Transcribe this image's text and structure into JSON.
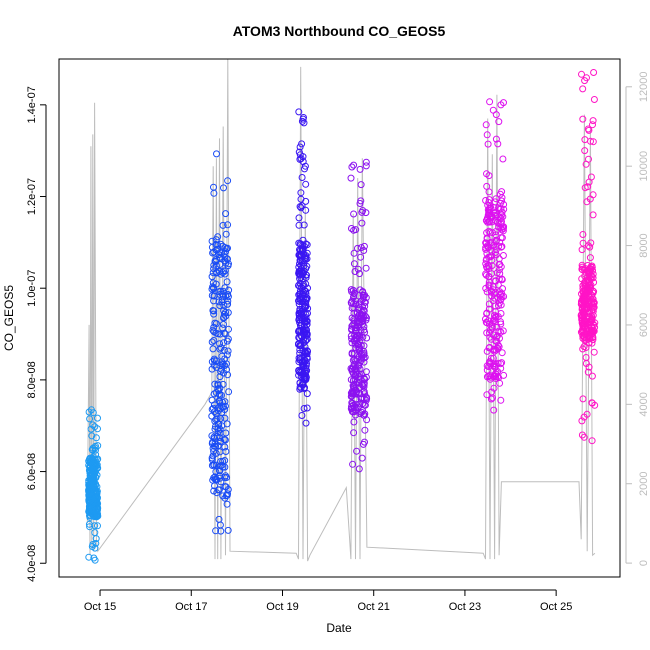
{
  "chart_data": {
    "type": "scatter",
    "title": "ATOM3 Northbound CO_GEOS5",
    "xlabel": "Date",
    "ylabel": "CO_GEOS5",
    "x_tick_labels": [
      "Oct 15",
      "Oct 17",
      "Oct 19",
      "Oct 21",
      "Oct 23",
      "Oct 25"
    ],
    "x_ticks_day": [
      15,
      17,
      19,
      21,
      23,
      25
    ],
    "xlim_day": [
      14.1,
      26.4
    ],
    "y_tick_values": [
      4e-08,
      6e-08,
      8e-08,
      1e-07,
      1.2e-07,
      1.4e-07
    ],
    "y_tick_labels": [
      "4.0e-08",
      "6.0e-08",
      "8.0e-08",
      "1.0e-07",
      "1.2e-07",
      "1.4e-07"
    ],
    "ylim": [
      3.7e-08,
      1.5e-07
    ],
    "y2_tick_values": [
      0,
      2000,
      4000,
      6000,
      8000,
      10000,
      12000
    ],
    "y2_tick_labels": [
      "0",
      "2000",
      "4000",
      "6000",
      "8000",
      "10000",
      "12000"
    ],
    "y2lim": [
      -350,
      12700
    ],
    "colors": {
      "series1": "#1e9af2",
      "series2": "#1a4cf5",
      "series3": "#3a16f2",
      "series4": "#8c12f0",
      "series5": "#dd11f0",
      "series6": "#ff14c6",
      "altitude": "#bdbdbd"
    },
    "series": [
      {
        "color": "#1e9af2",
        "day_start": 14.75,
        "day_end": 14.95,
        "ymin": 4.05e-08,
        "ymax": 7.4e-08,
        "core_low": 5e-08,
        "core_high": 6.3e-08
      },
      {
        "color": "#1a4cf5",
        "day_start": 17.45,
        "day_end": 17.82,
        "ymin": 4.7e-08,
        "ymax": 1.33e-07,
        "core_low": 5.5e-08,
        "core_high": 1.1e-07
      },
      {
        "color": "#3a16f2",
        "day_start": 19.35,
        "day_end": 19.55,
        "ymin": 6.8e-08,
        "ymax": 1.39e-07,
        "core_low": 7.8e-08,
        "core_high": 1.1e-07
      },
      {
        "color": "#8c12f0",
        "day_start": 20.5,
        "day_end": 20.85,
        "ymin": 6e-08,
        "ymax": 1.28e-07,
        "core_low": 7.2e-08,
        "core_high": 1e-07
      },
      {
        "color": "#dd11f0",
        "day_start": 23.45,
        "day_end": 23.85,
        "ymin": 7.3e-08,
        "ymax": 1.41e-07,
        "core_low": 8e-08,
        "core_high": 1.2e-07
      },
      {
        "color": "#ff14c6",
        "day_start": 25.55,
        "day_end": 25.85,
        "ymin": 6.4e-08,
        "ymax": 1.48e-07,
        "core_low": 8.8e-08,
        "core_high": 1.05e-07
      }
    ],
    "altitude_path": [
      [
        14.72,
        1000
      ],
      [
        14.76,
        6000
      ],
      [
        14.78,
        200
      ],
      [
        14.8,
        10500
      ],
      [
        14.82,
        400
      ],
      [
        14.84,
        10800
      ],
      [
        14.86,
        300
      ],
      [
        14.88,
        11600
      ],
      [
        14.92,
        600
      ],
      [
        14.95,
        300
      ],
      [
        17.3,
        4000
      ],
      [
        17.45,
        4300
      ],
      [
        17.48,
        10000
      ],
      [
        17.52,
        100
      ],
      [
        17.55,
        10200
      ],
      [
        17.58,
        100
      ],
      [
        17.62,
        10700
      ],
      [
        17.65,
        100
      ],
      [
        17.7,
        11000
      ],
      [
        17.75,
        200
      ],
      [
        17.8,
        12700
      ],
      [
        17.85,
        300
      ],
      [
        19.3,
        250
      ],
      [
        19.35,
        100
      ],
      [
        19.4,
        12500
      ],
      [
        19.45,
        100
      ],
      [
        19.5,
        9000
      ],
      [
        19.55,
        50
      ],
      [
        19.6,
        200
      ],
      [
        20.4,
        1900
      ],
      [
        20.5,
        100
      ],
      [
        20.55,
        8800
      ],
      [
        20.6,
        100
      ],
      [
        20.65,
        9700
      ],
      [
        20.7,
        100
      ],
      [
        20.75,
        10200
      ],
      [
        20.85,
        400
      ],
      [
        23.4,
        250
      ],
      [
        23.45,
        100
      ],
      [
        23.5,
        11200
      ],
      [
        23.55,
        100
      ],
      [
        23.6,
        10300
      ],
      [
        23.65,
        100
      ],
      [
        23.7,
        11800
      ],
      [
        23.75,
        200
      ],
      [
        23.8,
        2050
      ],
      [
        25.5,
        2050
      ],
      [
        25.55,
        600
      ],
      [
        25.62,
        11300
      ],
      [
        25.68,
        300
      ],
      [
        25.75,
        11000
      ],
      [
        25.8,
        200
      ],
      [
        25.85,
        250
      ]
    ]
  }
}
